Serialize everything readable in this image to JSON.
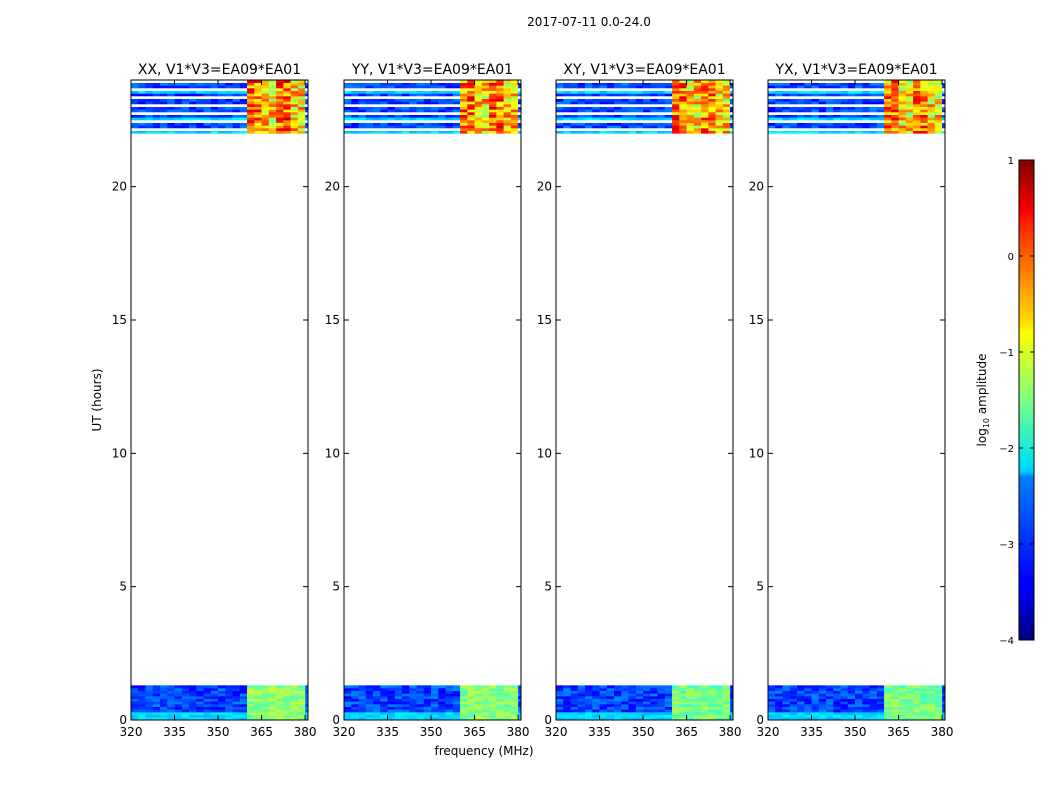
{
  "figure": {
    "suptitle": "2017-07-11 0.0-24.0"
  },
  "chart_data": {
    "type": "heatmap",
    "xlabel": "frequency (MHz)",
    "ylabel": "UT (hours)",
    "xlim": [
      320,
      381
    ],
    "ylim": [
      0,
      24
    ],
    "xticks": [
      "320",
      "335",
      "350",
      "365",
      "380"
    ],
    "yticks": [
      "0",
      "5",
      "10",
      "15",
      "20"
    ],
    "xtick_values": [
      320,
      335,
      350,
      365,
      380
    ],
    "ytick_values": [
      0,
      5,
      10,
      15,
      20
    ],
    "data_coverage_hours": [
      [
        0.0,
        1.3
      ],
      [
        22.0,
        24.0
      ]
    ],
    "bright_band_mhz": [
      359,
      379
    ],
    "panels": [
      {
        "title": "XX, V1*V3=EA09*EA01",
        "pol": "XX"
      },
      {
        "title": "YY, V1*V3=EA09*EA01",
        "pol": "YY"
      },
      {
        "title": "XY, V1*V3=EA09*EA01",
        "pol": "XY"
      },
      {
        "title": "YX, V1*V3=EA09*EA01",
        "pol": "YX"
      }
    ],
    "colorbar": {
      "label_prefix": "log",
      "label_sub": "10",
      "label_suffix": " amplitude",
      "range": [
        -4,
        1
      ],
      "ticks": [
        "1",
        "0",
        "−1",
        "−2",
        "−3",
        "−4"
      ],
      "tick_values": [
        1,
        0,
        -1,
        -2,
        -3,
        -4
      ],
      "colormap": "jet"
    }
  },
  "colors": {
    "axis": "#000000",
    "background": "#ffffff"
  }
}
